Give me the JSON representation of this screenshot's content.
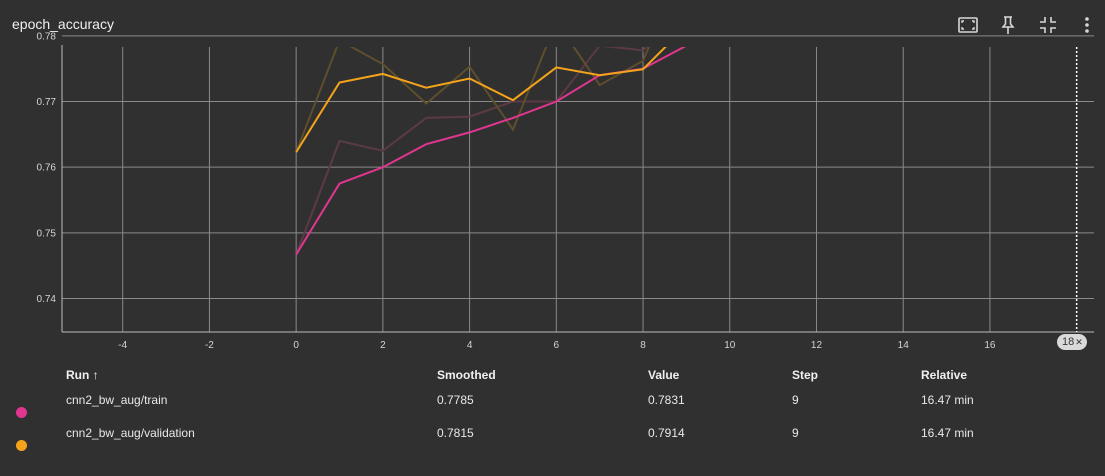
{
  "card": {
    "title": "epoch_accuracy",
    "toolbar": [
      {
        "name": "fit-domain-icon"
      },
      {
        "name": "pin-icon"
      },
      {
        "name": "collapse-icon"
      },
      {
        "name": "more-vert-icon"
      }
    ]
  },
  "colors": {
    "train": "#e0368f",
    "validation": "#f5a31a",
    "train_raw": "#5c3a44",
    "validation_raw": "#5e4e2c",
    "background": "#303030",
    "grid": "#8a8a8a"
  },
  "chart_data": {
    "type": "line",
    "title": "epoch_accuracy",
    "xlabel": "",
    "ylabel": "",
    "xlim": [
      -5.4,
      18.4
    ],
    "ylim": [
      0.7349,
      0.7783
    ],
    "xticks": [
      -4,
      -2,
      0,
      2,
      4,
      6,
      8,
      10,
      12,
      14,
      16
    ],
    "yticks": [
      0.74,
      0.75,
      0.76,
      0.77,
      0.78
    ],
    "ytick_labels": [
      "0.74",
      "0.75",
      "0.76",
      "0.77",
      "0.78"
    ],
    "grid": true,
    "step_marker": 18,
    "series": [
      {
        "id": "train",
        "x": [
          0,
          1,
          2,
          3,
          4,
          5,
          6,
          7,
          8,
          9
        ],
        "smoothed": [
          0.7467,
          0.7575,
          0.76,
          0.7635,
          0.7653,
          0.7675,
          0.77,
          0.774,
          0.775,
          0.7785
        ],
        "values": [
          0.7467,
          0.764,
          0.7625,
          0.7675,
          0.7677,
          0.77,
          0.77,
          0.7785,
          0.7778,
          0.7831
        ]
      },
      {
        "id": "validation",
        "x": [
          0,
          1,
          2,
          3,
          4,
          5,
          6,
          7,
          8,
          9
        ],
        "smoothed": [
          0.7623,
          0.7729,
          0.7742,
          0.7721,
          0.7735,
          0.7702,
          0.7752,
          0.774,
          0.7749,
          0.7815
        ],
        "values": [
          0.7623,
          0.7793,
          0.7757,
          0.7697,
          0.7753,
          0.7657,
          0.7822,
          0.7725,
          0.7762,
          0.7914
        ]
      }
    ]
  },
  "step_badge": {
    "label": "18",
    "close_glyph": "✕"
  },
  "table": {
    "headers": {
      "run": "Run",
      "sort_glyph": "↑",
      "smoothed": "Smoothed",
      "value": "Value",
      "step": "Step",
      "relative": "Relative"
    },
    "rows": [
      {
        "run": "cnn2_bw_aug/train",
        "smoothed": "0.7785",
        "value": "0.7831",
        "step": "9",
        "relative": "16.47 min",
        "color": "#e0368f"
      },
      {
        "run": "cnn2_bw_aug/validation",
        "smoothed": "0.7815",
        "value": "0.7914",
        "step": "9",
        "relative": "16.47 min",
        "color": "#f5a31a"
      }
    ]
  }
}
